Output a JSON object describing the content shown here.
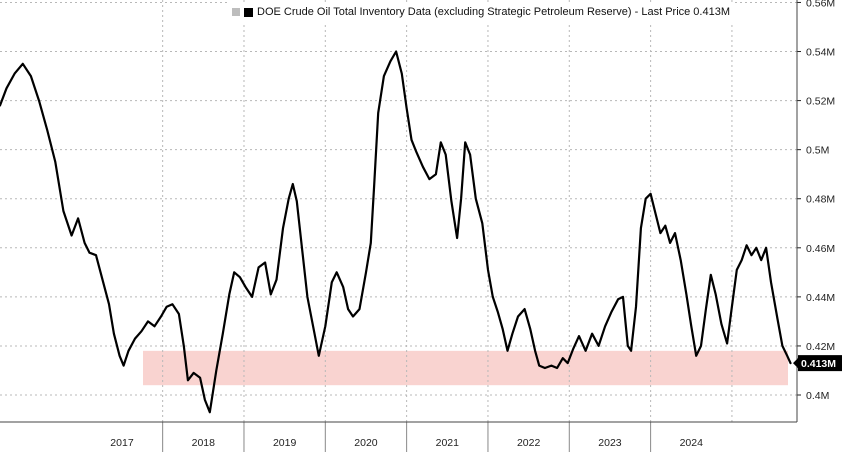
{
  "legend": {
    "text": "DOE Crude Oil Total Inventory Data (excluding Strategic Petroleum Reserve) - Last Price 0.413M",
    "marker_color": "#000000"
  },
  "chart_data": {
    "type": "line",
    "title": "",
    "series": [
      {
        "name": "DOE Crude Oil Total Inventory Data (excluding Strategic Petroleum Reserve) - Last Price 0.413M",
        "color": "#000000",
        "points": [
          [
            2016.0,
            0.518
          ],
          [
            2016.08,
            0.525
          ],
          [
            2016.18,
            0.531
          ],
          [
            2016.28,
            0.535
          ],
          [
            2016.38,
            0.53
          ],
          [
            2016.48,
            0.52
          ],
          [
            2016.58,
            0.508
          ],
          [
            2016.68,
            0.495
          ],
          [
            2016.78,
            0.475
          ],
          [
            2016.88,
            0.465
          ],
          [
            2016.96,
            0.472
          ],
          [
            2017.04,
            0.462
          ],
          [
            2017.1,
            0.458
          ],
          [
            2017.18,
            0.457
          ],
          [
            2017.26,
            0.447
          ],
          [
            2017.34,
            0.437
          ],
          [
            2017.4,
            0.425
          ],
          [
            2017.47,
            0.416
          ],
          [
            2017.52,
            0.412
          ],
          [
            2017.58,
            0.418
          ],
          [
            2017.66,
            0.423
          ],
          [
            2017.74,
            0.426
          ],
          [
            2017.82,
            0.43
          ],
          [
            2017.9,
            0.428
          ],
          [
            2017.98,
            0.432
          ],
          [
            2018.05,
            0.436
          ],
          [
            2018.12,
            0.437
          ],
          [
            2018.2,
            0.433
          ],
          [
            2018.26,
            0.42
          ],
          [
            2018.31,
            0.406
          ],
          [
            2018.38,
            0.409
          ],
          [
            2018.46,
            0.407
          ],
          [
            2018.52,
            0.398
          ],
          [
            2018.58,
            0.393
          ],
          [
            2018.66,
            0.41
          ],
          [
            2018.74,
            0.425
          ],
          [
            2018.82,
            0.441
          ],
          [
            2018.88,
            0.45
          ],
          [
            2018.95,
            0.448
          ],
          [
            2019.02,
            0.444
          ],
          [
            2019.1,
            0.44
          ],
          [
            2019.18,
            0.452
          ],
          [
            2019.26,
            0.454
          ],
          [
            2019.33,
            0.441
          ],
          [
            2019.4,
            0.447
          ],
          [
            2019.48,
            0.468
          ],
          [
            2019.55,
            0.48
          ],
          [
            2019.6,
            0.486
          ],
          [
            2019.65,
            0.479
          ],
          [
            2019.72,
            0.458
          ],
          [
            2019.78,
            0.44
          ],
          [
            2019.85,
            0.428
          ],
          [
            2019.92,
            0.416
          ],
          [
            2020.0,
            0.428
          ],
          [
            2020.08,
            0.446
          ],
          [
            2020.14,
            0.45
          ],
          [
            2020.22,
            0.444
          ],
          [
            2020.28,
            0.435
          ],
          [
            2020.34,
            0.432
          ],
          [
            2020.42,
            0.435
          ],
          [
            2020.5,
            0.45
          ],
          [
            2020.56,
            0.462
          ],
          [
            2020.6,
            0.485
          ],
          [
            2020.65,
            0.515
          ],
          [
            2020.72,
            0.53
          ],
          [
            2020.8,
            0.536
          ],
          [
            2020.87,
            0.54
          ],
          [
            2020.94,
            0.531
          ],
          [
            2021.0,
            0.517
          ],
          [
            2021.06,
            0.504
          ],
          [
            2021.12,
            0.499
          ],
          [
            2021.2,
            0.493
          ],
          [
            2021.28,
            0.488
          ],
          [
            2021.36,
            0.49
          ],
          [
            2021.42,
            0.503
          ],
          [
            2021.48,
            0.498
          ],
          [
            2021.55,
            0.479
          ],
          [
            2021.62,
            0.464
          ],
          [
            2021.67,
            0.48
          ],
          [
            2021.72,
            0.503
          ],
          [
            2021.78,
            0.498
          ],
          [
            2021.85,
            0.48
          ],
          [
            2021.93,
            0.47
          ],
          [
            2022.0,
            0.451
          ],
          [
            2022.06,
            0.44
          ],
          [
            2022.12,
            0.434
          ],
          [
            2022.18,
            0.427
          ],
          [
            2022.24,
            0.418
          ],
          [
            2022.3,
            0.425
          ],
          [
            2022.37,
            0.432
          ],
          [
            2022.45,
            0.435
          ],
          [
            2022.52,
            0.427
          ],
          [
            2022.58,
            0.418
          ],
          [
            2022.63,
            0.412
          ],
          [
            2022.7,
            0.411
          ],
          [
            2022.78,
            0.412
          ],
          [
            2022.85,
            0.411
          ],
          [
            2022.92,
            0.415
          ],
          [
            2022.98,
            0.413
          ],
          [
            2023.05,
            0.419
          ],
          [
            2023.12,
            0.424
          ],
          [
            2023.2,
            0.418
          ],
          [
            2023.28,
            0.425
          ],
          [
            2023.36,
            0.42
          ],
          [
            2023.44,
            0.428
          ],
          [
            2023.52,
            0.434
          ],
          [
            2023.6,
            0.439
          ],
          [
            2023.66,
            0.44
          ],
          [
            2023.72,
            0.42
          ],
          [
            2023.76,
            0.418
          ],
          [
            2023.82,
            0.436
          ],
          [
            2023.88,
            0.468
          ],
          [
            2023.94,
            0.48
          ],
          [
            2024.0,
            0.482
          ],
          [
            2024.06,
            0.474
          ],
          [
            2024.12,
            0.466
          ],
          [
            2024.18,
            0.469
          ],
          [
            2024.24,
            0.462
          ],
          [
            2024.3,
            0.466
          ],
          [
            2024.37,
            0.455
          ],
          [
            2024.44,
            0.441
          ],
          [
            2024.5,
            0.428
          ],
          [
            2024.56,
            0.416
          ],
          [
            2024.62,
            0.42
          ],
          [
            2024.68,
            0.435
          ],
          [
            2024.74,
            0.449
          ],
          [
            2024.8,
            0.441
          ],
          [
            2024.87,
            0.429
          ],
          [
            2024.94,
            0.421
          ],
          [
            2025.0,
            0.436
          ],
          [
            2025.06,
            0.451
          ],
          [
            2025.12,
            0.455
          ],
          [
            2025.18,
            0.461
          ],
          [
            2025.24,
            0.457
          ],
          [
            2025.3,
            0.46
          ],
          [
            2025.36,
            0.455
          ],
          [
            2025.42,
            0.46
          ],
          [
            2025.48,
            0.446
          ],
          [
            2025.56,
            0.431
          ],
          [
            2025.62,
            0.42
          ],
          [
            2025.68,
            0.416
          ],
          [
            2025.72,
            0.413
          ]
        ]
      }
    ],
    "x_ticks": [
      "2017",
      "2018",
      "2019",
      "2020",
      "2021",
      "2022",
      "2023",
      "2024"
    ],
    "y_ticks": [
      "0.4M",
      "0.42M",
      "0.44M",
      "0.46M",
      "0.48M",
      "0.5M",
      "0.52M",
      "0.54M",
      "0.56M"
    ],
    "y_tick_values": [
      0.4,
      0.42,
      0.44,
      0.46,
      0.48,
      0.5,
      0.52,
      0.54,
      0.56
    ],
    "xlim": [
      2016.0,
      2025.8
    ],
    "ylim": [
      0.389,
      0.561
    ],
    "highlight_band": {
      "from": 0.404,
      "to": 0.418,
      "color": "#f9d3d0"
    },
    "last_value_label": "0.413M",
    "last_value": 0.413,
    "last_label_color": "#000000",
    "grid": true,
    "y_axis_side": "right"
  }
}
